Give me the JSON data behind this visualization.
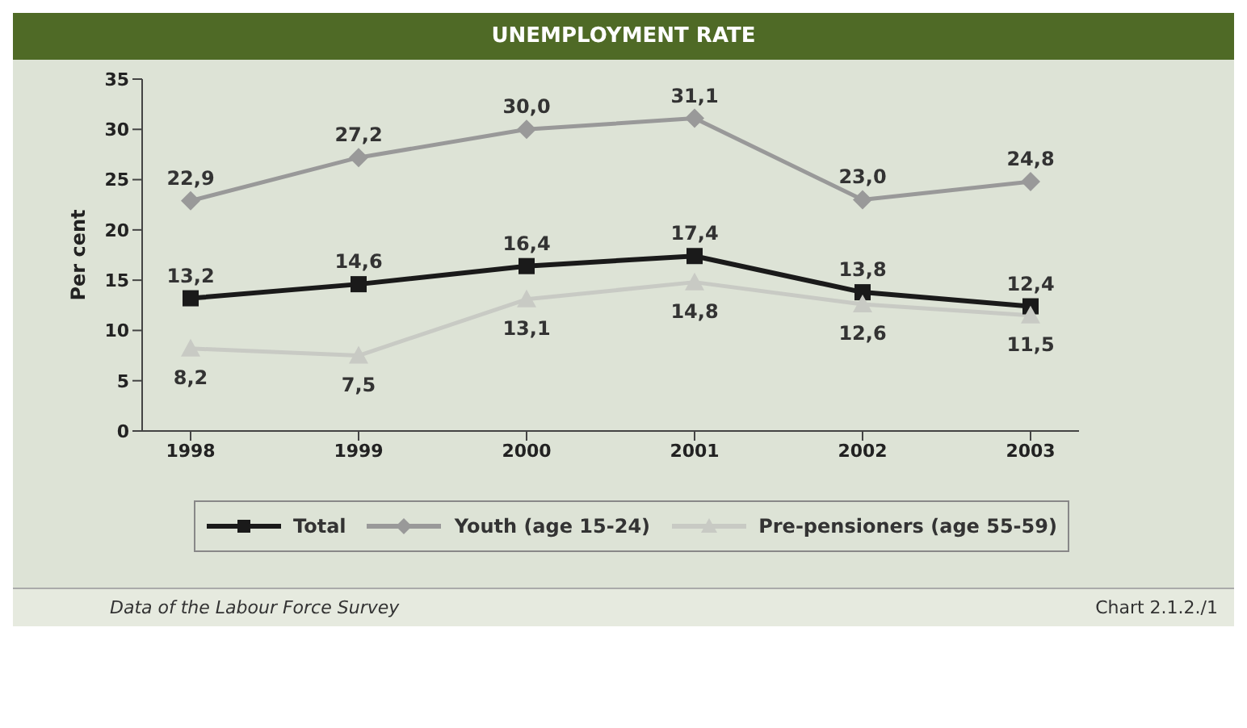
{
  "chart_data": {
    "type": "line",
    "title": "UNEMPLOYMENT RATE",
    "ylabel": "Per cent",
    "categories": [
      "1998",
      "1999",
      "2000",
      "2001",
      "2002",
      "2003"
    ],
    "series": [
      {
        "name": "Total",
        "color": "#1a1a1a",
        "marker": "square",
        "values": [
          13.2,
          14.6,
          16.4,
          17.4,
          13.8,
          12.4
        ],
        "value_labels": [
          "13,2",
          "14,6",
          "16,4",
          "17,4",
          "13,8",
          "12,4"
        ]
      },
      {
        "name": "Youth (age 15-24)",
        "color": "#999999",
        "marker": "diamond",
        "values": [
          22.9,
          27.2,
          30.0,
          31.1,
          23.0,
          24.8
        ],
        "value_labels": [
          "22,9",
          "27,2",
          "30,0",
          "31,1",
          "23,0",
          "24,8"
        ]
      },
      {
        "name": "Pre-pensioners (age 55-59)",
        "color": "#c8cac4",
        "marker": "triangle",
        "values": [
          8.2,
          7.5,
          13.1,
          14.8,
          12.6,
          11.5
        ],
        "value_labels": [
          "8,2",
          "7,5",
          "13,1",
          "14,8",
          "12,6",
          "11,5"
        ]
      }
    ],
    "ylim": [
      0,
      35
    ],
    "yticks": [
      0,
      5,
      10,
      15,
      20,
      25,
      30,
      35
    ],
    "grid": false,
    "legend": "bottom",
    "line_style": "solid",
    "annotations": [
      "Data of the Labour Force Survey",
      "Chart 2.1.2./1"
    ]
  }
}
